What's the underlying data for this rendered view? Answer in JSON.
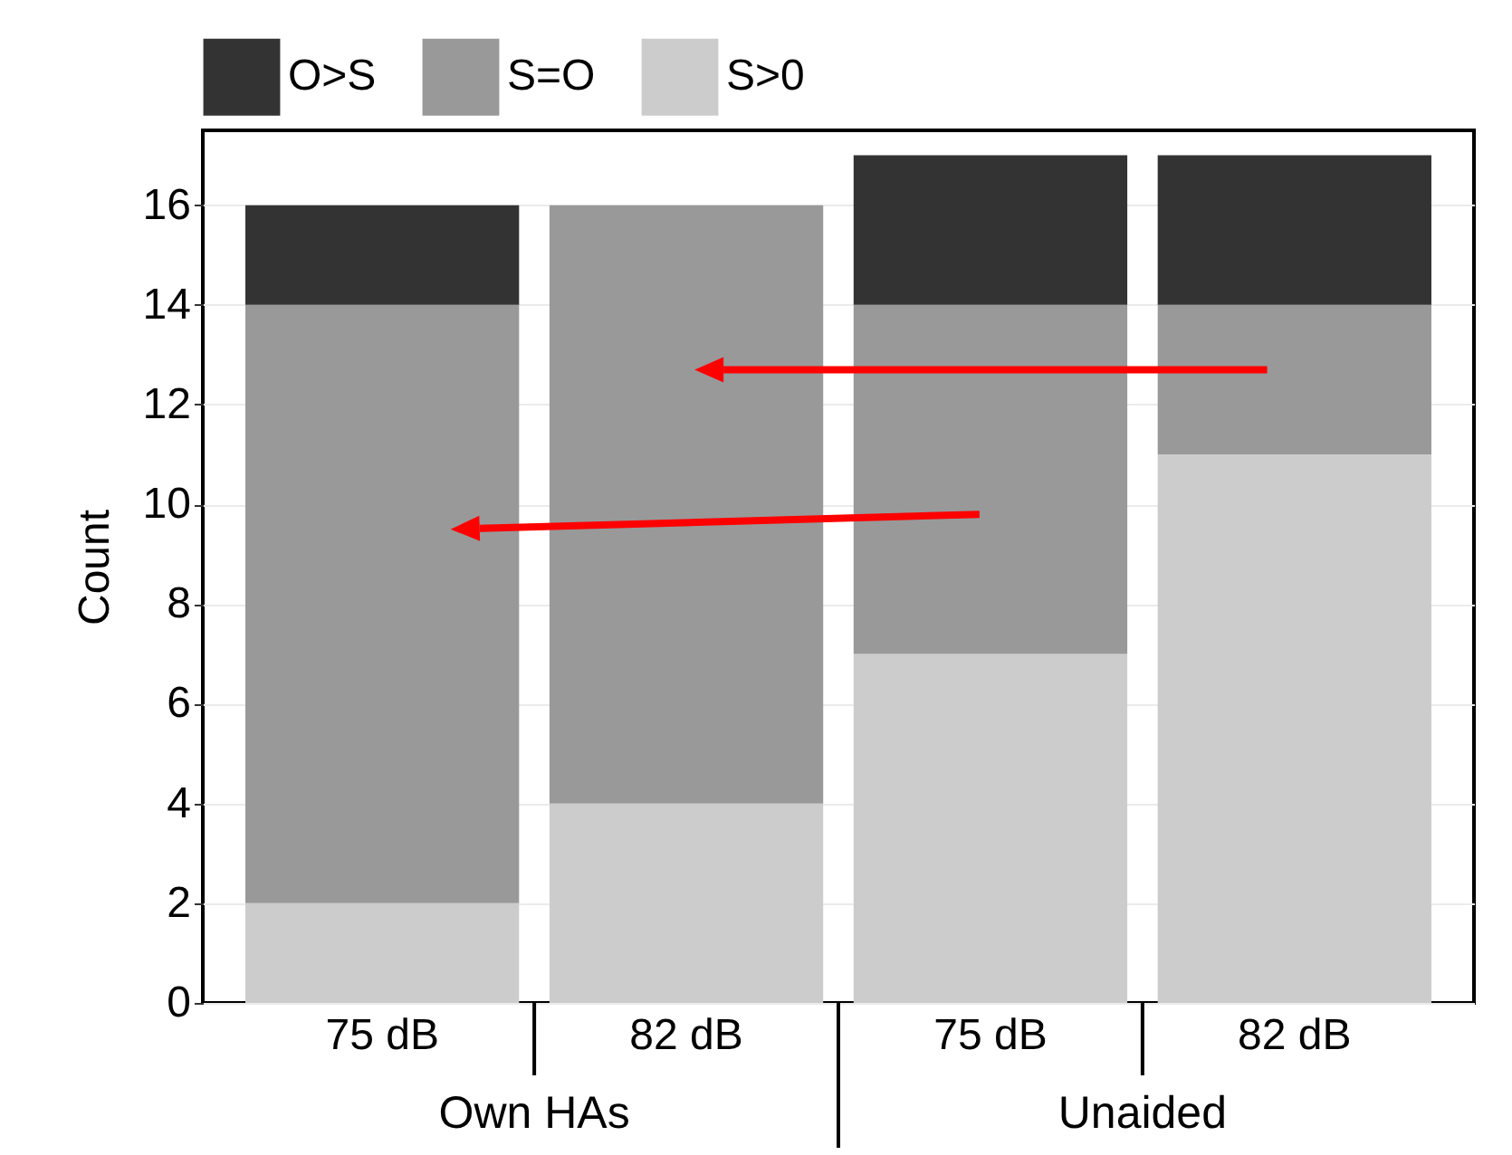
{
  "chart_data": {
    "type": "bar",
    "stacked": true,
    "categories": [
      "75 dB",
      "82 dB",
      "75 dB",
      "82 dB"
    ],
    "series": [
      {
        "name": "S>0",
        "color": "#cccccc",
        "values": [
          2,
          4,
          7,
          11
        ]
      },
      {
        "name": "S=O",
        "color": "#999999",
        "values": [
          12,
          12,
          7,
          3
        ]
      },
      {
        "name": "O>S",
        "color": "#333333",
        "values": [
          2,
          0,
          3,
          3
        ]
      }
    ],
    "ylabel": "Count",
    "ylim": [
      0,
      17.5
    ],
    "yticks": [
      0,
      2,
      4,
      6,
      8,
      10,
      12,
      14,
      16
    ],
    "grid": true,
    "legend": "top",
    "annotations": [
      "Own HAs",
      "Unaided"
    ]
  }
}
